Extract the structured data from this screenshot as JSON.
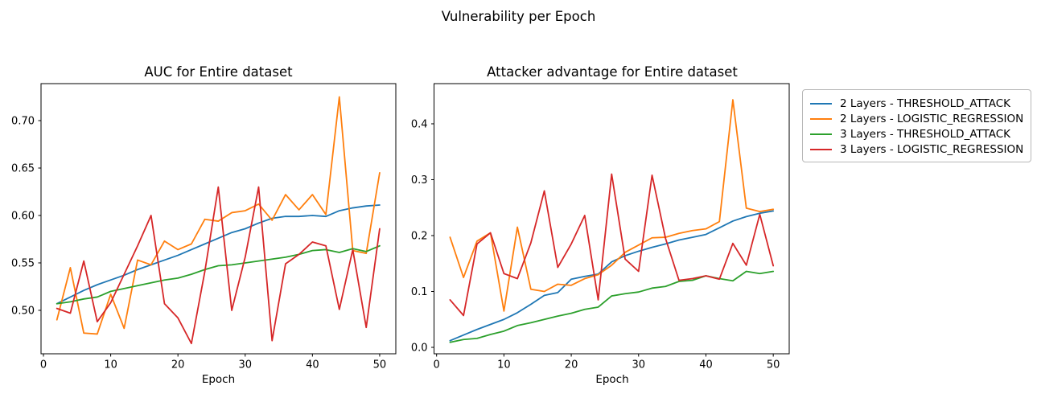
{
  "figure": {
    "title": "Vulnerability per Epoch"
  },
  "colors": {
    "blue": "#1f77b4",
    "orange": "#ff7f0e",
    "green": "#2ca02c",
    "red": "#d62728",
    "axis": "#000000",
    "background": "#ffffff",
    "legend_border": "#b7b7b7"
  },
  "legend": {
    "position": "outside-top-right",
    "items": [
      {
        "label": "2 Layers - THRESHOLD_ATTACK",
        "color": "#1f77b4"
      },
      {
        "label": "2 Layers - LOGISTIC_REGRESSION",
        "color": "#ff7f0e"
      },
      {
        "label": "3 Layers - THRESHOLD_ATTACK",
        "color": "#2ca02c"
      },
      {
        "label": "3 Layers - LOGISTIC_REGRESSION",
        "color": "#d62728"
      }
    ]
  },
  "chart_data": [
    {
      "type": "line",
      "title": "AUC for Entire dataset",
      "xlabel": "Epoch",
      "ylabel": "",
      "grid": false,
      "xlim": [
        -0.36,
        52.4
      ],
      "ylim": [
        0.4542,
        0.739
      ],
      "xticks": [
        0,
        10,
        20,
        30,
        40,
        50
      ],
      "xtick_labels": [
        "0",
        "10",
        "20",
        "30",
        "40",
        "50"
      ],
      "yticks": [
        0.5,
        0.55,
        0.6,
        0.65,
        0.7
      ],
      "ytick_labels": [
        "0.50",
        "0.55",
        "0.60",
        "0.65",
        "0.70"
      ],
      "x": [
        2,
        4,
        6,
        8,
        10,
        12,
        14,
        16,
        18,
        20,
        22,
        24,
        26,
        28,
        30,
        32,
        34,
        36,
        38,
        40,
        42,
        44,
        46,
        48,
        50
      ],
      "series": [
        {
          "name": "2 Layers - THRESHOLD_ATTACK",
          "color": "#1f77b4",
          "values": [
            0.507,
            0.514,
            0.521,
            0.527,
            0.532,
            0.537,
            0.543,
            0.548,
            0.553,
            0.558,
            0.564,
            0.57,
            0.576,
            0.582,
            0.586,
            0.592,
            0.597,
            0.599,
            0.599,
            0.6,
            0.599,
            0.605,
            0.608,
            0.61,
            0.611
          ]
        },
        {
          "name": "2 Layers - LOGISTIC_REGRESSION",
          "color": "#ff7f0e",
          "values": [
            0.49,
            0.545,
            0.476,
            0.475,
            0.517,
            0.481,
            0.553,
            0.548,
            0.573,
            0.564,
            0.57,
            0.596,
            0.594,
            0.603,
            0.605,
            0.612,
            0.595,
            0.622,
            0.606,
            0.622,
            0.601,
            0.725,
            0.563,
            0.56,
            0.645
          ]
        },
        {
          "name": "3 Layers - THRESHOLD_ATTACK",
          "color": "#2ca02c",
          "values": [
            0.507,
            0.509,
            0.512,
            0.514,
            0.52,
            0.523,
            0.526,
            0.529,
            0.532,
            0.534,
            0.538,
            0.543,
            0.547,
            0.548,
            0.55,
            0.552,
            0.554,
            0.556,
            0.559,
            0.563,
            0.564,
            0.561,
            0.565,
            0.562,
            0.568
          ]
        },
        {
          "name": "3 Layers - LOGISTIC_REGRESSION",
          "color": "#d62728",
          "values": [
            0.502,
            0.497,
            0.552,
            0.488,
            0.508,
            0.538,
            0.568,
            0.6,
            0.507,
            0.492,
            0.465,
            0.541,
            0.63,
            0.5,
            0.556,
            0.63,
            0.468,
            0.549,
            0.559,
            0.572,
            0.568,
            0.501,
            0.564,
            0.482,
            0.586
          ]
        }
      ]
    },
    {
      "type": "line",
      "title": "Attacker advantage for Entire dataset",
      "xlabel": "Epoch",
      "ylabel": "",
      "grid": false,
      "xlim": [
        -0.38,
        52.37
      ],
      "ylim": [
        -0.0115,
        0.4719
      ],
      "xticks": [
        0,
        10,
        20,
        30,
        40,
        50
      ],
      "xtick_labels": [
        "0",
        "10",
        "20",
        "30",
        "40",
        "50"
      ],
      "yticks": [
        0.0,
        0.1,
        0.2,
        0.3,
        0.4
      ],
      "ytick_labels": [
        "0.0",
        "0.1",
        "0.2",
        "0.3",
        "0.4"
      ],
      "x": [
        2,
        4,
        6,
        8,
        10,
        12,
        14,
        16,
        18,
        20,
        22,
        24,
        26,
        28,
        30,
        32,
        34,
        36,
        38,
        40,
        42,
        44,
        46,
        48,
        50
      ],
      "series": [
        {
          "name": "2 Layers - THRESHOLD_ATTACK",
          "color": "#1f77b4",
          "values": [
            0.012,
            0.022,
            0.032,
            0.041,
            0.05,
            0.062,
            0.077,
            0.093,
            0.098,
            0.122,
            0.127,
            0.131,
            0.153,
            0.164,
            0.172,
            0.179,
            0.185,
            0.192,
            0.197,
            0.202,
            0.214,
            0.226,
            0.234,
            0.24,
            0.244
          ]
        },
        {
          "name": "2 Layers - LOGISTIC_REGRESSION",
          "color": "#ff7f0e",
          "values": [
            0.197,
            0.125,
            0.19,
            0.205,
            0.065,
            0.215,
            0.104,
            0.1,
            0.113,
            0.111,
            0.123,
            0.13,
            0.147,
            0.17,
            0.183,
            0.196,
            0.197,
            0.204,
            0.209,
            0.212,
            0.225,
            0.443,
            0.249,
            0.243,
            0.247
          ]
        },
        {
          "name": "3 Layers - THRESHOLD_ATTACK",
          "color": "#2ca02c",
          "values": [
            0.009,
            0.014,
            0.016,
            0.023,
            0.029,
            0.039,
            0.044,
            0.05,
            0.056,
            0.061,
            0.068,
            0.072,
            0.092,
            0.096,
            0.099,
            0.106,
            0.109,
            0.118,
            0.12,
            0.128,
            0.123,
            0.119,
            0.136,
            0.132,
            0.136
          ]
        },
        {
          "name": "3 Layers - LOGISTIC_REGRESSION",
          "color": "#d62728",
          "values": [
            0.085,
            0.057,
            0.185,
            0.205,
            0.132,
            0.123,
            0.187,
            0.28,
            0.143,
            0.185,
            0.236,
            0.085,
            0.31,
            0.158,
            0.136,
            0.308,
            0.195,
            0.12,
            0.123,
            0.128,
            0.122,
            0.186,
            0.147,
            0.238,
            0.146
          ]
        }
      ]
    }
  ]
}
